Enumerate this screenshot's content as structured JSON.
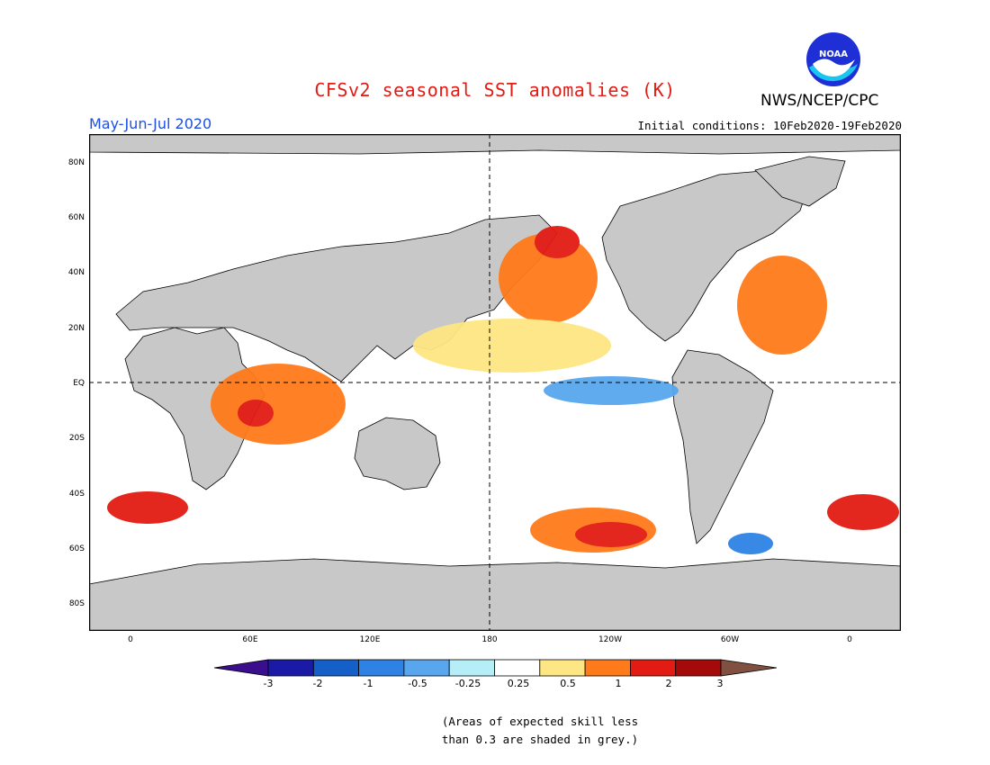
{
  "header": {
    "title": "CFSv2 seasonal SST anomalies (K)",
    "agency": "NWS/NCEP/CPC",
    "logo_text": "NOAA",
    "period": "May-Jun-Jul 2020",
    "initial_conditions": "Initial conditions: 10Feb2020-19Feb2020"
  },
  "map": {
    "lat_ticks": [
      "80N",
      "60N",
      "40N",
      "20N",
      "EQ",
      "20S",
      "40S",
      "60S",
      "80S"
    ],
    "lon_ticks": [
      "0",
      "60E",
      "120E",
      "180",
      "120W",
      "60W",
      "0"
    ],
    "projection": "cylindrical",
    "dashed_reference_lines": [
      "EQ",
      "180"
    ],
    "land_color": "#c8c8c8",
    "grey_shading_meaning": "skill < 0.3"
  },
  "colorbar": {
    "labels": [
      "-3",
      "-2",
      "-1",
      "-0.5",
      "-0.25",
      "0.25",
      "0.5",
      "1",
      "2",
      "3"
    ],
    "colors": [
      "#1a1aa6",
      "#1560c8",
      "#2d82e4",
      "#58a6ee",
      "#b6eef8",
      "#ffffff",
      "#fde683",
      "#ff7a1a",
      "#e21b13",
      "#a50a0a"
    ],
    "low_extension_color": "#3a0e8c",
    "high_extension_color": "#805040"
  },
  "footnote": {
    "text": "(Areas of expected skill less\nthan 0.3 are shaded in grey.)"
  }
}
